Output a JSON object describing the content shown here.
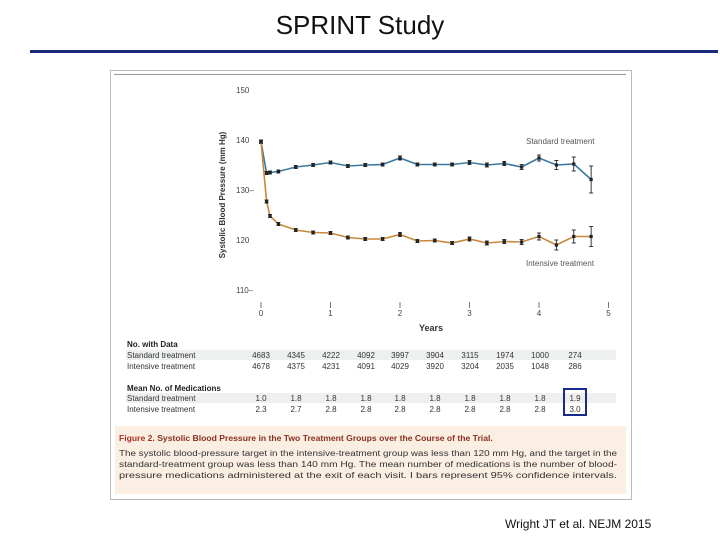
{
  "slide": {
    "title": "SPRINT Study",
    "citation": "Wright JT et al. NEJM 2015"
  },
  "chart_data": {
    "type": "line",
    "xlabel": "Years",
    "ylabel": "Systolic Blood Pressure (mm Hg)",
    "xlim": [
      0,
      5
    ],
    "ylim": [
      110,
      150
    ],
    "x_ticks": [
      {
        "value": 0,
        "label": "0"
      },
      {
        "value": 1,
        "label": "1"
      },
      {
        "value": 2,
        "label": "2"
      },
      {
        "value": 3,
        "label": "3"
      },
      {
        "value": 4,
        "label": "4"
      },
      {
        "value": 5,
        "label": "5"
      }
    ],
    "y_ticks": [
      {
        "value": 110,
        "label": "110–"
      },
      {
        "value": 120,
        "label": "120"
      },
      {
        "value": 130,
        "label": "130–"
      },
      {
        "value": 140,
        "label": "140"
      },
      {
        "value": 150,
        "label": "150"
      }
    ],
    "series": [
      {
        "name": "Standard treatment",
        "color": "#3a7aa0",
        "x": [
          0,
          0.08,
          0.13,
          0.25,
          0.5,
          0.75,
          1.0,
          1.25,
          1.5,
          1.75,
          2.0,
          2.25,
          2.5,
          2.75,
          3.0,
          3.25,
          3.5,
          3.75,
          4.0,
          4.25,
          4.5,
          4.75
        ],
        "y": [
          139.6,
          133.4,
          133.5,
          133.7,
          134.6,
          135.0,
          135.5,
          134.8,
          135.0,
          135.1,
          136.4,
          135.1,
          135.1,
          135.1,
          135.5,
          135.0,
          135.3,
          134.6,
          136.4,
          135.0,
          135.2,
          132.1
        ],
        "err": [
          0.3,
          0.3,
          0.3,
          0.3,
          0.3,
          0.3,
          0.3,
          0.3,
          0.3,
          0.3,
          0.4,
          0.3,
          0.3,
          0.3,
          0.4,
          0.4,
          0.4,
          0.5,
          0.6,
          0.9,
          1.4,
          2.7
        ]
      },
      {
        "name": "Intensive treatment",
        "color": "#c8883a",
        "x": [
          0,
          0.08,
          0.13,
          0.25,
          0.5,
          0.75,
          1.0,
          1.25,
          1.5,
          1.75,
          2.0,
          2.25,
          2.5,
          2.75,
          3.0,
          3.25,
          3.5,
          3.75,
          4.0,
          4.25,
          4.5,
          4.75
        ],
        "y": [
          139.7,
          127.7,
          124.8,
          123.2,
          122.0,
          121.5,
          121.4,
          120.5,
          120.2,
          120.2,
          121.1,
          119.8,
          119.9,
          119.4,
          120.2,
          119.4,
          119.7,
          119.6,
          120.7,
          119.0,
          120.7,
          120.7
        ],
        "err": [
          0.3,
          0.3,
          0.3,
          0.3,
          0.3,
          0.3,
          0.3,
          0.3,
          0.3,
          0.3,
          0.4,
          0.3,
          0.3,
          0.3,
          0.4,
          0.4,
          0.4,
          0.5,
          0.7,
          1.0,
          1.3,
          2.0
        ]
      }
    ],
    "annotations": {
      "standard_label": "Standard treatment",
      "intensive_label": "Intensive treatment"
    },
    "table": {
      "data_heading": "No. with Data",
      "medications_heading": "Mean No. of Medications",
      "rows_data": [
        {
          "label": "Standard treatment",
          "values": [
            "4683",
            "4345",
            "4222",
            "4092",
            "3997",
            "3904",
            "3115",
            "1974",
            "1000",
            "274"
          ]
        },
        {
          "label": "Intensive treatment",
          "values": [
            "4678",
            "4375",
            "4231",
            "4091",
            "4029",
            "3920",
            "3204",
            "2035",
            "1048",
            "286"
          ]
        }
      ],
      "rows_medications": [
        {
          "label": "Standard treatment",
          "values": [
            "1.0",
            "1.8",
            "1.8",
            "1.8",
            "1.8",
            "1.8",
            "1.8",
            "1.8",
            "1.8",
            "1.9"
          ]
        },
        {
          "label": "Intensive treatment",
          "values": [
            "2.3",
            "2.7",
            "2.8",
            "2.8",
            "2.8",
            "2.8",
            "2.8",
            "2.8",
            "2.8",
            "3.0"
          ]
        }
      ]
    },
    "caption": {
      "figure_label": "Figure 2.",
      "title": "Systolic Blood Pressure in the Two Treatment Groups over the Course of the Trial.",
      "lines": [
        "The systolic blood-pressure target in the intensive-treatment group was less than 120 mm Hg, and the target in the",
        "standard-treatment group was less than 140 mm Hg. The mean number of medications is the number of blood-",
        "pressure medications administered at the exit of each visit. I bars represent 95% confidence intervals."
      ]
    }
  }
}
